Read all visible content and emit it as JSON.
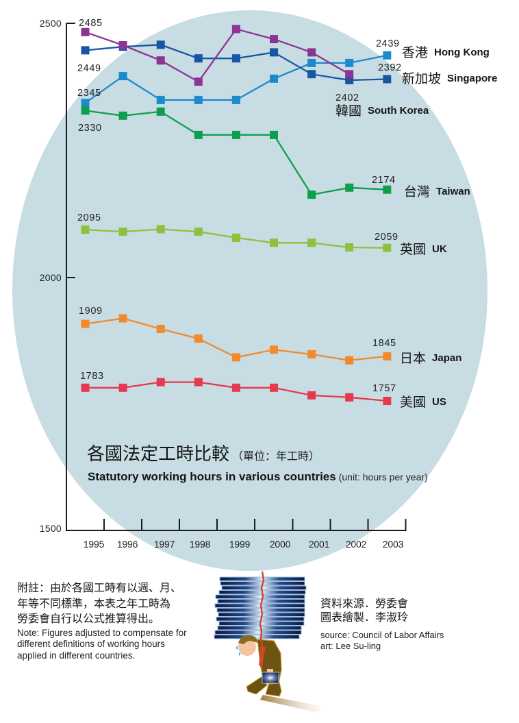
{
  "chart_data": {
    "type": "line",
    "title_zh": "各國法定工時比較",
    "unit_zh": "（單位：年工時）",
    "title_en": "Statutory working hours in various countries",
    "unit_en": "(unit: hours per year)",
    "xlabel": "",
    "ylabel": "",
    "x": [
      "1995",
      "1996",
      "1997",
      "1998",
      "1999",
      "2000",
      "2001",
      "2002",
      "2003"
    ],
    "ylim": [
      1500,
      2500
    ],
    "yticks": [
      2500,
      2000,
      1500
    ],
    "grid": false,
    "legend": "right (direct labels at line ends)",
    "series": [
      {
        "name_zh": "香港",
        "name_en": "Hong Kong",
        "color": "#1b8bcb",
        "values": [
          2345,
          2398,
          2351,
          2351,
          2351,
          2393,
          2424,
          2424,
          2439
        ]
      },
      {
        "name_zh": "新加坡",
        "name_en": "Singapore",
        "color": "#1656a4",
        "values": [
          2449,
          2456,
          2460,
          2433,
          2433,
          2445,
          2402,
          2390,
          2392
        ]
      },
      {
        "name_zh": "韓國",
        "name_en": "South Korea",
        "color": "#8c3594",
        "values": [
          2485,
          2459,
          2429,
          2387,
          2491,
          2471,
          2445,
          2402,
          null
        ]
      },
      {
        "name_zh": "台灣",
        "name_en": "Taiwan",
        "color": "#0c9f4c",
        "values": [
          2330,
          2320,
          2328,
          2282,
          2282,
          2282,
          2164,
          2178,
          2174
        ]
      },
      {
        "name_zh": "英國",
        "name_en": "UK",
        "color": "#8ec03c",
        "values": [
          2095,
          2091,
          2096,
          2091,
          2079,
          2069,
          2069,
          2060,
          2059
        ]
      },
      {
        "name_zh": "日本",
        "name_en": "Japan",
        "color": "#f08a2c",
        "values": [
          1909,
          1920,
          1899,
          1880,
          1843,
          1858,
          1849,
          1837,
          1845
        ]
      },
      {
        "name_zh": "美國",
        "name_en": "US",
        "color": "#e5394f",
        "values": [
          1783,
          1783,
          1794,
          1794,
          1783,
          1783,
          1768,
          1764,
          1757
        ]
      }
    ]
  },
  "colors": {
    "background_ellipse": "#c8dce3",
    "axis": "#1a1a1a"
  },
  "note": {
    "zh_lines": [
      "附註：由於各國工時有以週、月、",
      "年等不同標準，本表之年工時為",
      "勞委會自行以公式推算得出。"
    ],
    "en_lines": [
      "Note: Figures adjusted to compensate for",
      "different definitions of working hours",
      "applied in different countries."
    ]
  },
  "credits": {
    "zh_lines": [
      "資料來源．勞委會",
      "圖表繪製．李淑玲"
    ],
    "en_lines": [
      "source: Council of Labor Affairs",
      "art: Lee Su-ling"
    ]
  },
  "illustration": {
    "icon": "overworked-employee-with-paper-stack-icon"
  }
}
